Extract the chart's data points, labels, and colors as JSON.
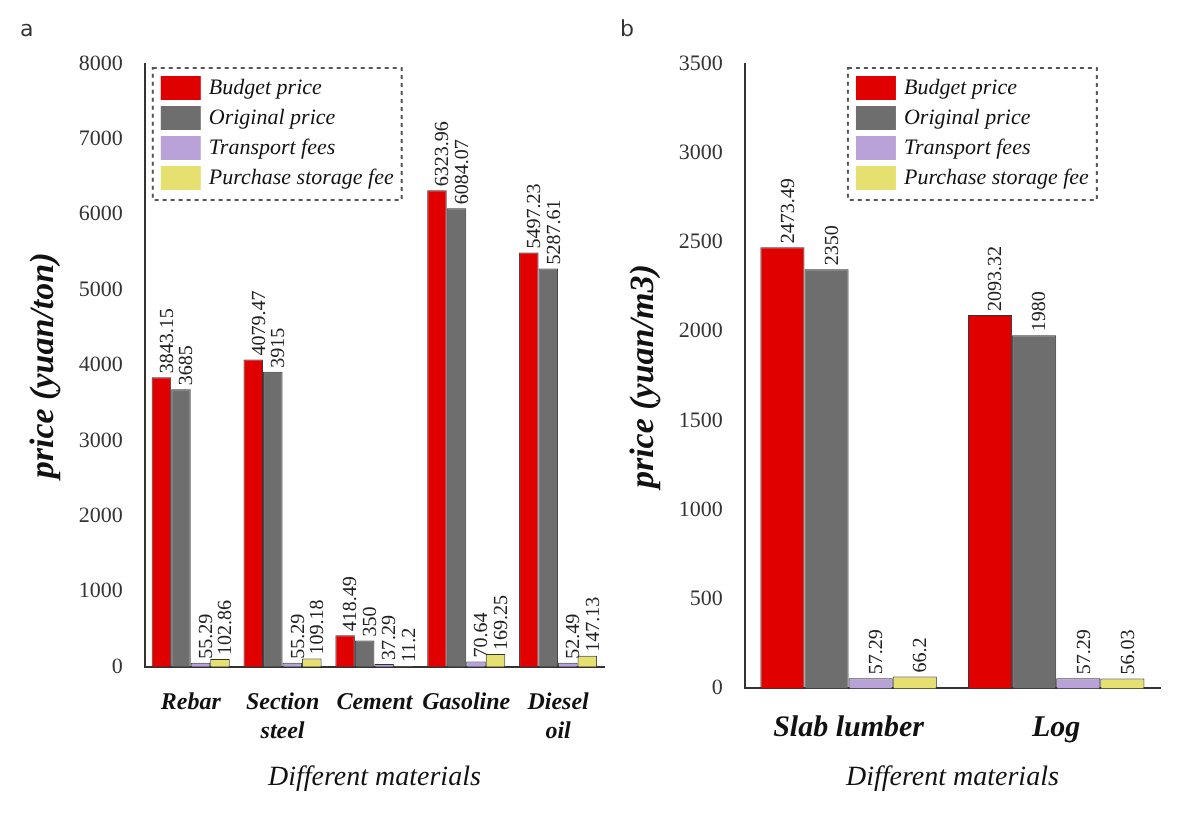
{
  "chart_data": [
    {
      "type": "bar",
      "annotations": [
        "a"
      ],
      "xlabel": "Different materials",
      "ylabel": "price (yuan/ton)",
      "categories": [
        "Rebar",
        "Section steel",
        "Cement",
        "Gasoline",
        "Diesel oil"
      ],
      "series": [
        {
          "name": "Budget price",
          "color": "#e00000",
          "values": [
            3843.15,
            4079.47,
            418.49,
            6323.96,
            5497.23
          ]
        },
        {
          "name": "Original price",
          "color": "#6e6e6e",
          "values": [
            3685,
            3915,
            350,
            6084.07,
            5287.61
          ]
        },
        {
          "name": "Transport fees",
          "color": "#b8a2d8",
          "values": [
            55.29,
            55.29,
            37.29,
            70.64,
            52.49
          ]
        },
        {
          "name": "Purchase storage fee",
          "color": "#e6e070",
          "values": [
            102.86,
            109.18,
            11.2,
            169.25,
            147.13
          ]
        }
      ],
      "ylim": [
        0,
        8000
      ],
      "yticks": [
        0,
        1000,
        2000,
        3000,
        4000,
        5000,
        6000,
        7000,
        8000
      ],
      "data_labels": true,
      "legend": "top left",
      "grid": false
    },
    {
      "type": "bar",
      "annotations": [
        "b"
      ],
      "xlabel": "Different materials",
      "ylabel": "price (yuan/m3)",
      "categories": [
        "Slab lumber",
        "Log"
      ],
      "series": [
        {
          "name": "Budget price",
          "color": "#e00000",
          "values": [
            2473.49,
            2093.32
          ]
        },
        {
          "name": "Original price",
          "color": "#6e6e6e",
          "values": [
            2350,
            1980
          ]
        },
        {
          "name": "Transport fees",
          "color": "#b8a2d8",
          "values": [
            57.29,
            57.29
          ]
        },
        {
          "name": "Purchase storage fee",
          "color": "#e6e070",
          "values": [
            66.2,
            56.03
          ]
        }
      ],
      "ylim": [
        0,
        3500
      ],
      "yticks": [
        0,
        500,
        1000,
        1500,
        2000,
        2500,
        3000,
        3500
      ],
      "data_labels": true,
      "legend": "top",
      "grid": false
    }
  ]
}
